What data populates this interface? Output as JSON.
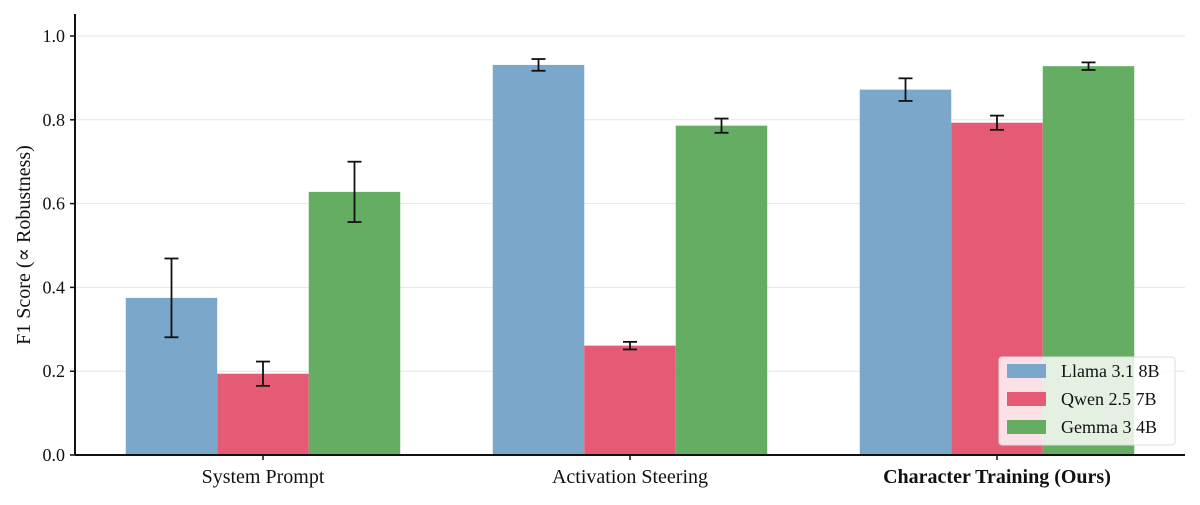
{
  "chart_data": {
    "type": "bar",
    "title": "",
    "xlabel": "",
    "ylabel": "F1 Score (∝ Robustness)",
    "ylim": [
      0,
      1.05
    ],
    "yticks": [
      "0.0",
      "0.2",
      "0.4",
      "0.6",
      "0.8",
      "1.0"
    ],
    "grid": "horizontal",
    "legend_position": "bottom-right",
    "categories": [
      "System Prompt",
      "Activation Steering",
      "Character Training (Ours)"
    ],
    "bold_category": "Character Training (Ours)",
    "series": [
      {
        "name": "Llama 3.1 8B",
        "color": "#7ba7cb",
        "values": [
          0.375,
          0.931,
          0.872
        ],
        "errors": [
          0.094,
          0.014,
          0.027
        ]
      },
      {
        "name": "Qwen 2.5 7B",
        "color": "#e55a74",
        "values": [
          0.194,
          0.261,
          0.793
        ],
        "errors": [
          0.029,
          0.009,
          0.017
        ]
      },
      {
        "name": "Gemma 3 4B",
        "color": "#64ad62",
        "values": [
          0.628,
          0.786,
          0.928
        ],
        "errors": [
          0.072,
          0.017,
          0.009
        ]
      }
    ]
  }
}
